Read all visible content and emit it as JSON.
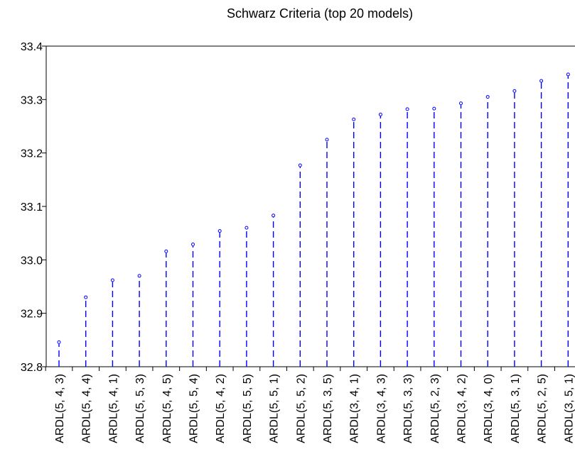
{
  "chart_data": {
    "type": "dropline",
    "title": "Schwarz Criteria (top 20 models)",
    "xlabel": "",
    "ylabel": "",
    "ylim": [
      32.8,
      33.4
    ],
    "yticks": [
      "32.8",
      "32.9",
      "33.0",
      "33.1",
      "33.2",
      "33.3",
      "33.4"
    ],
    "categories": [
      "ARDL(5, 4, 3)",
      "ARDL(5, 4, 4)",
      "ARDL(5, 4, 1)",
      "ARDL(5, 5, 3)",
      "ARDL(5, 4, 5)",
      "ARDL(5, 5, 4)",
      "ARDL(5, 4, 2)",
      "ARDL(5, 5, 5)",
      "ARDL(5, 5, 1)",
      "ARDL(5, 5, 2)",
      "ARDL(5, 3, 5)",
      "ARDL(3, 4, 1)",
      "ARDL(3, 4, 3)",
      "ARDL(5, 3, 3)",
      "ARDL(5, 2, 3)",
      "ARDL(3, 4, 2)",
      "ARDL(3, 4, 0)",
      "ARDL(5, 3, 1)",
      "ARDL(5, 2, 5)",
      "ARDL(3, 5, 1)"
    ],
    "values": [
      32.846,
      32.93,
      32.962,
      32.97,
      33.016,
      33.029,
      33.054,
      33.06,
      33.083,
      33.177,
      33.225,
      33.263,
      33.272,
      33.282,
      33.283,
      33.293,
      33.305,
      33.316,
      33.335,
      33.347
    ],
    "colors": {
      "series": "#0000ff",
      "axis": "#000000"
    },
    "grid": false
  }
}
